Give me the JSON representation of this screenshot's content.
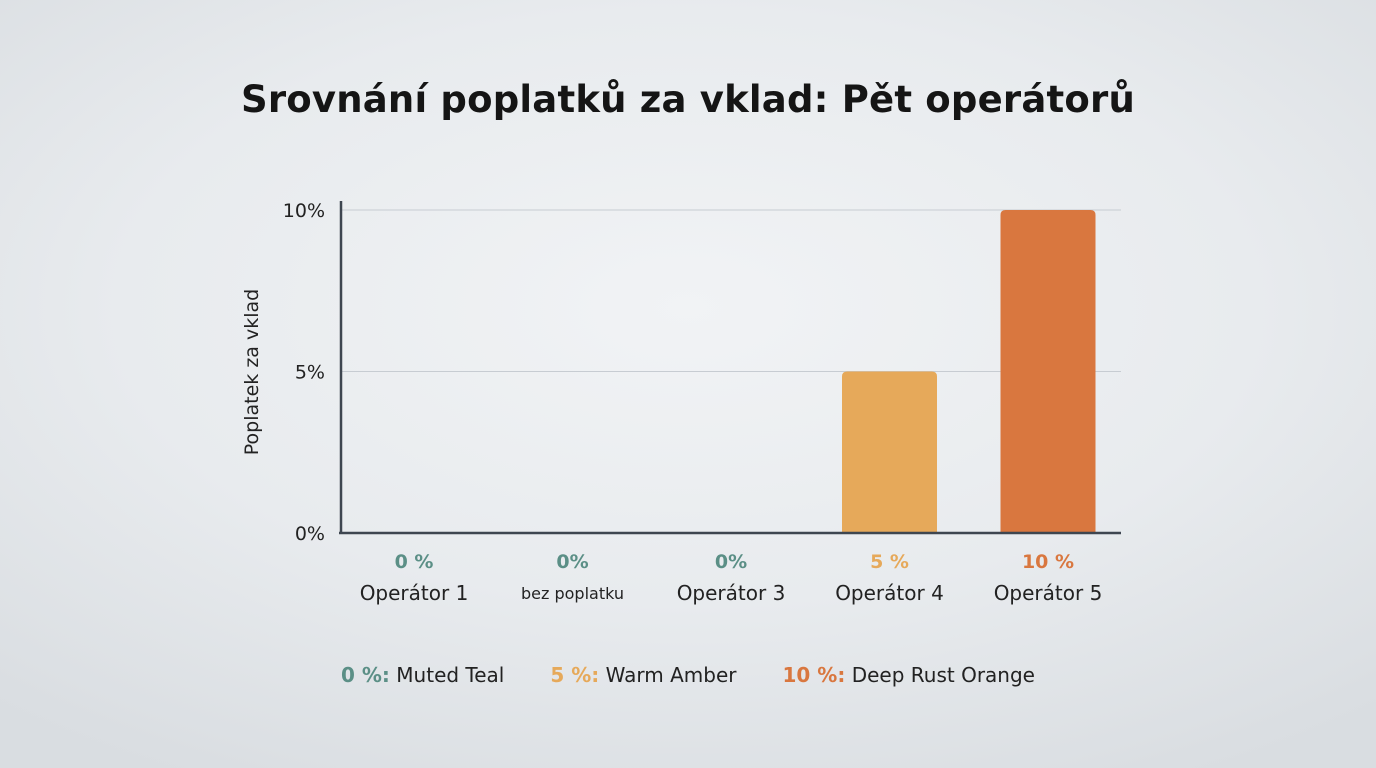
{
  "chart_data": {
    "type": "bar",
    "title": "Srovnání poplatků za vklad: Pět operátorů",
    "ylabel": "Poplatek za vklad",
    "xlabel": "",
    "ylim": [
      0,
      10
    ],
    "y_ticks": [
      "0%",
      "5%",
      "10%"
    ],
    "y_tick_values": [
      0,
      5,
      10
    ],
    "grid": true,
    "categories": [
      "Operátor 1",
      "bez poplatku",
      "Operátor 3",
      "Operátor 4",
      "Operátor 5"
    ],
    "values": [
      0,
      0,
      0,
      5,
      10
    ],
    "value_labels": [
      "0 %",
      "0%",
      "0%",
      "5 %",
      "10 %"
    ],
    "bar_colors": [
      "#5b8f86",
      "#5b8f86",
      "#5b8f86",
      "#e6a95a",
      "#d9773f"
    ],
    "legend": [
      {
        "key": "0 %:",
        "label": "Muted Teal",
        "color": "#5b8f86"
      },
      {
        "key": "5 %:",
        "label": "Warm Amber",
        "color": "#e6a95a"
      },
      {
        "key": "10 %:",
        "label": "Deep Rust Orange",
        "color": "#d9773f"
      }
    ],
    "legend_position": "bottom"
  }
}
